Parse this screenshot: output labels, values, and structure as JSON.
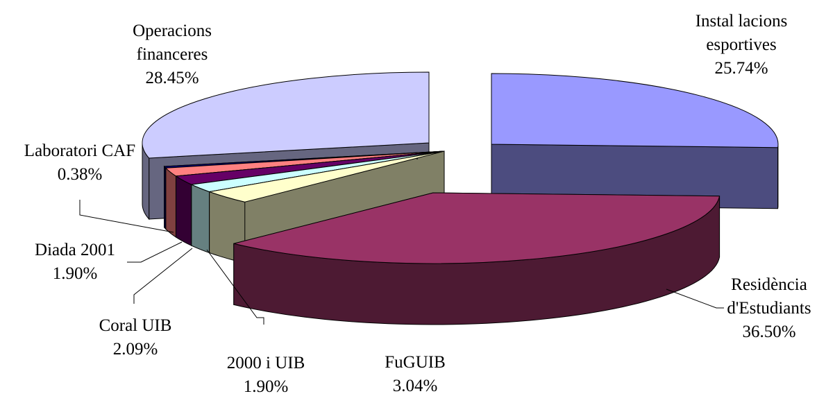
{
  "chart_data": {
    "type": "pie",
    "style": "3d-exploded",
    "slices": [
      {
        "label": [
          "Instal lacions",
          "esportives"
        ],
        "value": 25.74,
        "value_text": "25.74%",
        "color": "#9999ff",
        "side_color": "#4c4c7f"
      },
      {
        "label": [
          "Residència",
          "d'Estudiants"
        ],
        "value": 36.5,
        "value_text": "36.50%",
        "color": "#993366",
        "side_color": "#4d1a33"
      },
      {
        "label": [
          "FuGUIB"
        ],
        "value": 3.04,
        "value_text": "3.04%",
        "color": "#ffffcc",
        "side_color": "#808066"
      },
      {
        "label": [
          "2000 i UIB"
        ],
        "value": 1.9,
        "value_text": "1.90%",
        "color": "#ccffff",
        "side_color": "#668080"
      },
      {
        "label": [
          "Coral UIB"
        ],
        "value": 2.09,
        "value_text": "2.09%",
        "color": "#660066",
        "side_color": "#330033"
      },
      {
        "label": [
          "Diada 2001"
        ],
        "value": 1.9,
        "value_text": "1.90%",
        "color": "#ff8080",
        "side_color": "#804040"
      },
      {
        "label": [],
        "value": 0.0,
        "value_text": "",
        "color": "#0066cc",
        "side_color": "#003366"
      },
      {
        "label": [],
        "value": 0.0,
        "value_text": "",
        "color": "#cccccc",
        "side_color": "#666666"
      },
      {
        "label": [
          "Laboratori CAF"
        ],
        "value": 0.38,
        "value_text": "0.38%",
        "color": "#000080",
        "side_color": "#000040"
      },
      {
        "label": [
          "Operacions",
          "financeres"
        ],
        "value": 28.45,
        "value_text": "28.45%",
        "color": "#ccccff",
        "side_color": "#666680"
      }
    ]
  }
}
